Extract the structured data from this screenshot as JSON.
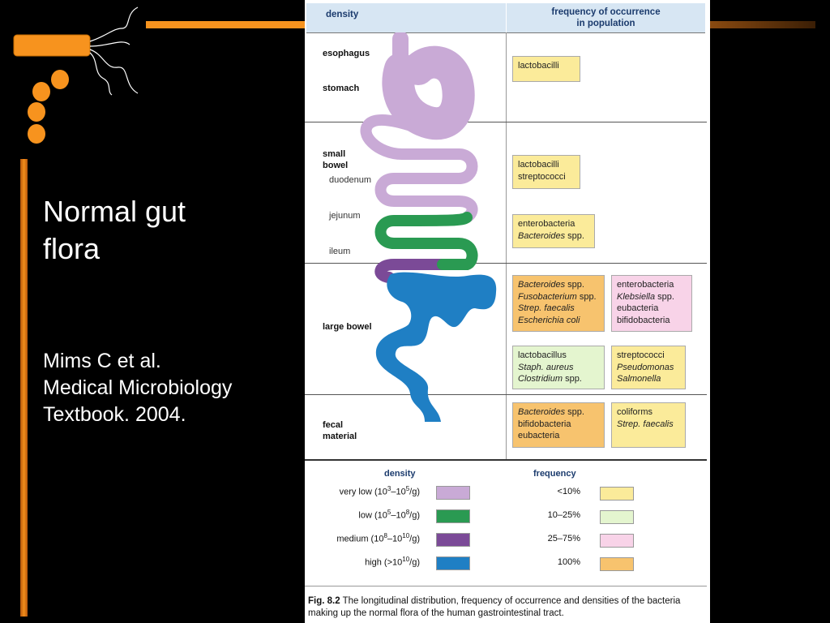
{
  "slide": {
    "title_line1": "Normal gut",
    "title_line2": "flora",
    "citation_line1": "Mims C et al.",
    "citation_line2": "Medical Microbiology",
    "citation_line3": "Textbook. 2004."
  },
  "figure": {
    "header_density": "density",
    "header_frequency_line1": "frequency of occurrence",
    "header_frequency_line2": "in population",
    "regions": {
      "esophagus": "esophagus",
      "stomach": "stomach",
      "small_bowel_line1": "small",
      "small_bowel_line2": "bowel",
      "duodenum": "duodenum",
      "jejunum": "jejunum",
      "ileum": "ileum",
      "large_bowel": "large bowel",
      "fecal_line1": "fecal",
      "fecal_line2": "material"
    },
    "boxes": {
      "stomach": [
        "lactobacilli"
      ],
      "duodenum": [
        "lactobacilli",
        "streptococci"
      ],
      "jejunum": [
        {
          "name": "enterobacteria",
          "suffix": ""
        },
        {
          "name": "Bacteroides",
          "suffix": " spp."
        }
      ],
      "large_a": [
        {
          "name": "Bacteroides",
          "suffix": " spp."
        },
        {
          "name": "Fusobacterium",
          "suffix": " spp."
        },
        {
          "name": "Strep. faecalis",
          "suffix": ""
        },
        {
          "name": "Escherichia coli",
          "suffix": ""
        }
      ],
      "large_b": [
        {
          "name": "enterobacteria",
          "italic": false,
          "suffix": ""
        },
        {
          "name": "Klebsiella",
          "italic": true,
          "suffix": " spp."
        },
        {
          "name": "eubacteria",
          "italic": false,
          "suffix": ""
        },
        {
          "name": "bifidobacteria",
          "italic": false,
          "suffix": ""
        }
      ],
      "large_c": [
        {
          "name": "lactobacillus",
          "italic": false,
          "suffix": ""
        },
        {
          "name": "Staph. aureus",
          "italic": true,
          "suffix": ""
        },
        {
          "name": "Clostridium",
          "italic": true,
          "suffix": " spp."
        }
      ],
      "large_d": [
        {
          "name": "streptococci",
          "italic": false,
          "suffix": ""
        },
        {
          "name": "Pseudomonas",
          "italic": true,
          "suffix": ""
        },
        {
          "name": "Salmonella",
          "italic": true,
          "suffix": ""
        }
      ],
      "fecal_a": [
        {
          "name": "Bacteroides",
          "italic": true,
          "suffix": " spp."
        },
        {
          "name": "bifidobacteria",
          "italic": false,
          "suffix": ""
        },
        {
          "name": "eubacteria",
          "italic": false,
          "suffix": ""
        }
      ],
      "fecal_b": [
        {
          "name": "coliforms",
          "italic": false,
          "suffix": ""
        },
        {
          "name": "Strep. faecalis",
          "italic": true,
          "suffix": ""
        }
      ]
    },
    "legend": {
      "density_title": "density",
      "frequency_title": "frequency",
      "density": [
        {
          "label": "very low (10",
          "exp1": "3",
          "mid": "–10",
          "exp2": "5",
          "end": "/g)",
          "color": "#c9aad6"
        },
        {
          "label": "low (10",
          "exp1": "5",
          "mid": "–10",
          "exp2": "8",
          "end": "/g)",
          "color": "#2a9a52"
        },
        {
          "label": "medium (10",
          "exp1": "8",
          "mid": "–10",
          "exp2": "10",
          "end": "/g)",
          "color": "#7b4a97"
        },
        {
          "label": "high (>10",
          "exp1": "10",
          "mid": "",
          "exp2": "",
          "end": "/g)",
          "color": "#1f7fc4"
        }
      ],
      "frequency": [
        {
          "label": "<10%",
          "color": "#fbeb9a"
        },
        {
          "label": "10–25%",
          "color": "#e4f5cf"
        },
        {
          "label": "25–75%",
          "color": "#f8d3e8"
        },
        {
          "label": "100%",
          "color": "#f7c36e"
        }
      ]
    },
    "caption_bold": "Fig. 8.2",
    "caption_text": " The longitudinal distribution, frequency of occurrence and densities of the bacteria making up the normal flora of the human gastrointestinal tract."
  },
  "colors": {
    "accent_orange": "#f7931e",
    "very_low": "#c9aad6",
    "low": "#2a9a52",
    "medium": "#7b4a97",
    "high": "#1f7fc4",
    "box_yellow": "#fbeb9a",
    "box_green": "#e4f5cf",
    "box_pink": "#f8d3e8",
    "box_orange": "#f7c36e"
  }
}
